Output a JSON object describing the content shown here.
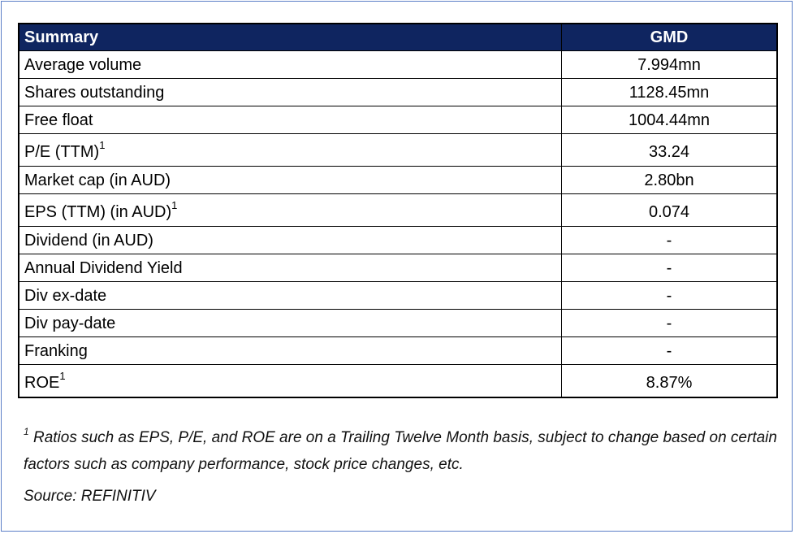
{
  "table": {
    "header": {
      "label": "Summary",
      "value": "GMD"
    },
    "rows": [
      {
        "label": "Average volume",
        "sup": "",
        "value": "7.994mn"
      },
      {
        "label": "Shares outstanding",
        "sup": "",
        "value": "1128.45mn"
      },
      {
        "label": "Free float",
        "sup": "",
        "value": "1004.44mn"
      },
      {
        "label": "P/E (TTM)",
        "sup": "1",
        "value": "33.24"
      },
      {
        "label": "Market cap (in AUD)",
        "sup": "",
        "value": "2.80bn"
      },
      {
        "label": "EPS (TTM) (in AUD)",
        "sup": "1",
        "value": "0.074"
      },
      {
        "label": "Dividend (in AUD)",
        "sup": "",
        "value": "-"
      },
      {
        "label": "Annual Dividend Yield",
        "sup": "",
        "value": "-"
      },
      {
        "label": "Div ex-date",
        "sup": "",
        "value": "-"
      },
      {
        "label": "Div pay-date",
        "sup": "",
        "value": "-"
      },
      {
        "label": "Franking",
        "sup": "",
        "value": "-"
      },
      {
        "label": "ROE",
        "sup": "1",
        "value": "8.87%"
      }
    ]
  },
  "footnote": {
    "marker": "1",
    "text": " Ratios such as EPS, P/E, and ROE are on a Trailing Twelve Month basis, subject to change based on certain factors such as company performance, stock price changes, etc."
  },
  "source": "Source: REFINITIV",
  "colors": {
    "header_bg": "#0f2560",
    "header_text": "#ffffff",
    "frame_border": "#5b7fc7"
  }
}
